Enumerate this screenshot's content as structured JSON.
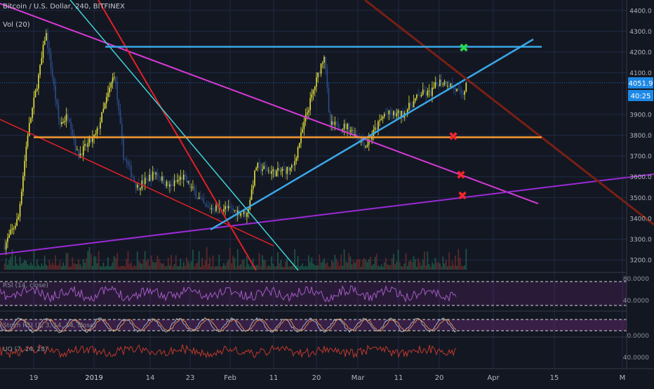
{
  "header": {
    "title": "Bitcoin / U.S. Dollar, 240, BITFINEX",
    "volume_label": "Vol (20)"
  },
  "price_axis": {
    "ticks": [
      "4400.0",
      "4300.0",
      "4200.0",
      "4100.0",
      "3900.0",
      "3800.0",
      "3700.0",
      "3600.0",
      "3500.0",
      "3400.0",
      "3300.0",
      "3200.0"
    ],
    "current_price": "4051.9",
    "countdown": "40:25"
  },
  "time_axis": {
    "ticks": [
      "19",
      "2019",
      "14",
      "23",
      "Feb",
      "11",
      "20",
      "Mar",
      "11",
      "20",
      "Apr",
      "15",
      "M"
    ]
  },
  "indicators": {
    "rsi_label": "RSI (14, close)",
    "rsi_ticks": [
      "80.0000",
      "40.0000"
    ],
    "stoch_label": "Stoch RSI (3, 3, 14, 14, close)",
    "stoch_ticks": [
      "0.0000"
    ],
    "uo_label": "UO (7, 14, 28)",
    "uo_ticks": [
      "40.0000"
    ]
  },
  "markers": {
    "check": "✖",
    "colors": {
      "green": "#2ad94a",
      "red": "#f0262f"
    }
  },
  "chart_data": {
    "type": "candlestick",
    "symbol": "Bitcoin / U.S. Dollar",
    "interval": "240",
    "exchange": "BITFINEX",
    "ylim": [
      3150,
      4450
    ],
    "x_range": [
      "2018-12-14",
      "2019-04-30"
    ],
    "last_price": 4051.9,
    "horizontal_levels": [
      {
        "price": 4225,
        "color": "#3aa7e6"
      },
      {
        "price": 3790,
        "color": "#f59b2f"
      }
    ],
    "annotation_marks": [
      {
        "kind": "green-x",
        "price": 4220
      },
      {
        "kind": "red-x",
        "price": 3795
      },
      {
        "kind": "red-x",
        "price": 3610
      },
      {
        "kind": "red-x",
        "price": 3510
      }
    ],
    "price_path": [
      [
        "2018-12-15",
        3270
      ],
      [
        "2018-12-18",
        3400
      ],
      [
        "2018-12-20",
        3800
      ],
      [
        "2018-12-23",
        4150
      ],
      [
        "2018-12-24",
        4300
      ],
      [
        "2018-12-27",
        3850
      ],
      [
        "2018-12-29",
        3900
      ],
      [
        "2018-12-31",
        3700
      ],
      [
        "2019-01-04",
        3800
      ],
      [
        "2019-01-08",
        4100
      ],
      [
        "2019-01-10",
        3700
      ],
      [
        "2019-01-13",
        3550
      ],
      [
        "2019-01-17",
        3620
      ],
      [
        "2019-01-20",
        3550
      ],
      [
        "2019-01-23",
        3600
      ],
      [
        "2019-01-28",
        3450
      ],
      [
        "2019-02-01",
        3450
      ],
      [
        "2019-02-06",
        3420
      ],
      [
        "2019-02-08",
        3650
      ],
      [
        "2019-02-12",
        3620
      ],
      [
        "2019-02-16",
        3640
      ],
      [
        "2019-02-19",
        3900
      ],
      [
        "2019-02-23",
        4200
      ],
      [
        "2019-02-24",
        3850
      ],
      [
        "2019-02-28",
        3840
      ],
      [
        "2019-03-04",
        3750
      ],
      [
        "2019-03-08",
        3900
      ],
      [
        "2019-03-12",
        3900
      ],
      [
        "2019-03-16",
        4000
      ],
      [
        "2019-03-18",
        4000
      ],
      [
        "2019-03-20",
        4060
      ],
      [
        "2019-03-22",
        4050
      ],
      [
        "2019-03-25",
        3990
      ],
      [
        "2019-03-26",
        4040
      ]
    ],
    "rsi": {
      "upper": 70,
      "lower": 30
    },
    "stoch_rsi": {
      "upper": 80,
      "lower": 20
    }
  }
}
